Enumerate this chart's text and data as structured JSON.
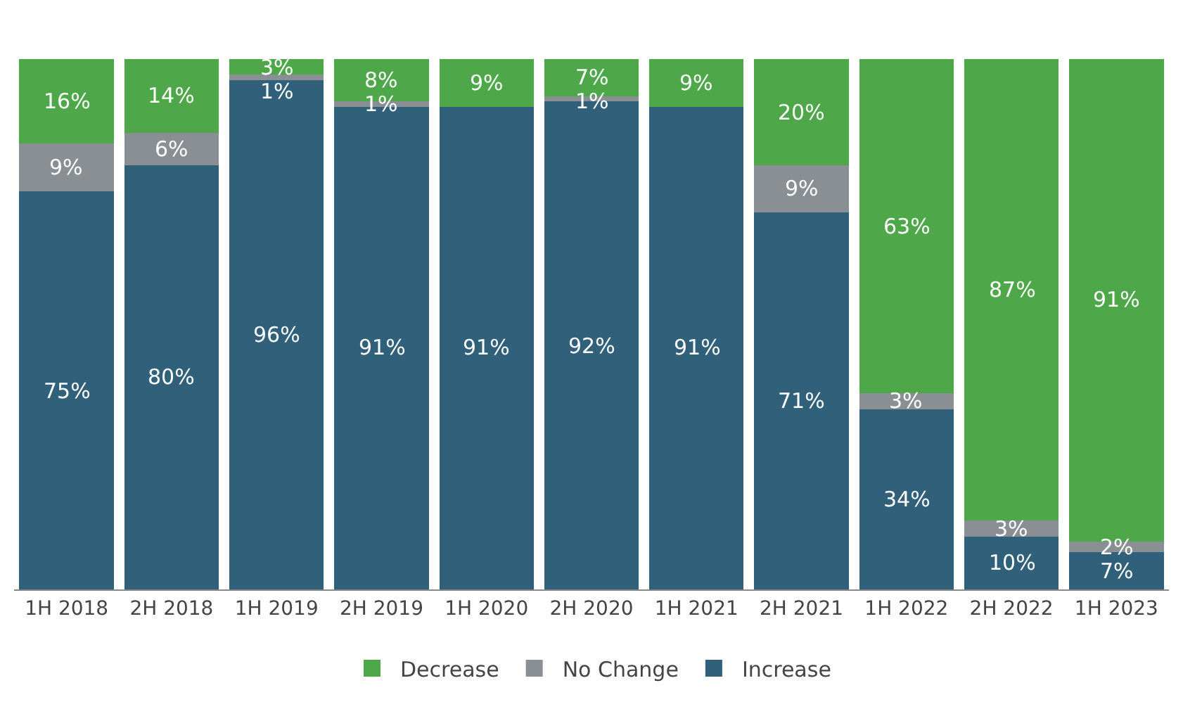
{
  "chart_data": {
    "type": "bar",
    "stacked": true,
    "legend": "bottom",
    "categories": [
      "1H 2018",
      "2H 2018",
      "1H 2019",
      "2H 2019",
      "1H 2020",
      "2H 2020",
      "1H 2021",
      "2H 2021",
      "1H 2022",
      "2H 2022",
      "1H 2023"
    ],
    "series": [
      {
        "name": "Increase",
        "color": "#30607a",
        "values": [
          75,
          80,
          96,
          91,
          91,
          92,
          91,
          71,
          34,
          10,
          7
        ],
        "value_labels": [
          "75%",
          "80%",
          "96%",
          "91%",
          "91%",
          "92%",
          "91%",
          "71%",
          "34%",
          "10%",
          "7%"
        ]
      },
      {
        "name": "No Change",
        "color": "#8a8f93",
        "values": [
          9,
          6,
          1,
          1,
          0,
          1,
          0,
          9,
          3,
          3,
          2
        ],
        "value_labels": [
          "9%",
          "6%",
          "1%",
          "1%",
          null,
          "1%",
          null,
          "9%",
          "3%",
          "3%",
          "2%"
        ]
      },
      {
        "name": "Decrease",
        "color": "#4ea84a",
        "values": [
          16,
          14,
          3,
          8,
          9,
          7,
          9,
          20,
          63,
          87,
          91
        ],
        "value_labels": [
          "16%",
          "14%",
          "3%",
          "8%",
          "9%",
          "7%",
          "9%",
          "20%",
          "63%",
          "87%",
          "91%"
        ]
      }
    ]
  }
}
